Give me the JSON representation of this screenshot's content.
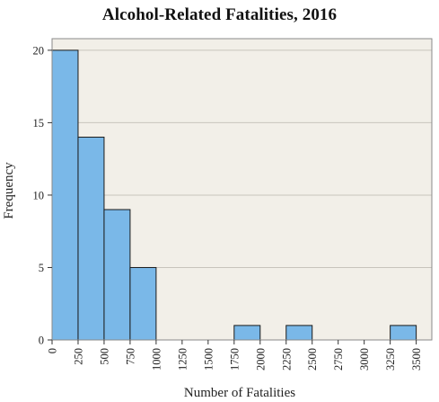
{
  "chart_data": {
    "type": "bar",
    "title": "Alcohol-Related Fatalities, 2016",
    "xlabel": "Number of Fatalities",
    "ylabel": "Frequency",
    "bin_edges": [
      0,
      250,
      500,
      750,
      1000,
      1250,
      1500,
      1750,
      2000,
      2250,
      2500,
      2750,
      3000,
      3250,
      3500
    ],
    "x_tick_labels": [
      "0",
      "250",
      "500",
      "750",
      "1000",
      "1250",
      "1500",
      "1750",
      "2000",
      "2250",
      "2500",
      "2750",
      "3000",
      "3250",
      "3500"
    ],
    "values": [
      20,
      14,
      9,
      5,
      0,
      0,
      0,
      1,
      0,
      1,
      0,
      0,
      0,
      1
    ],
    "xlim": [
      0,
      3650
    ],
    "ylim": [
      0,
      20.8
    ],
    "y_ticks": [
      0,
      5,
      10,
      15,
      20
    ],
    "y_tick_labels": [
      "0",
      "5",
      "10",
      "15",
      "20"
    ],
    "grid": true,
    "colors": {
      "bar_fill": "#7ab8e8",
      "bar_stroke": "#1a1a1a",
      "plot_background": "#f2efe8",
      "grid": "#c8c4bc"
    }
  }
}
